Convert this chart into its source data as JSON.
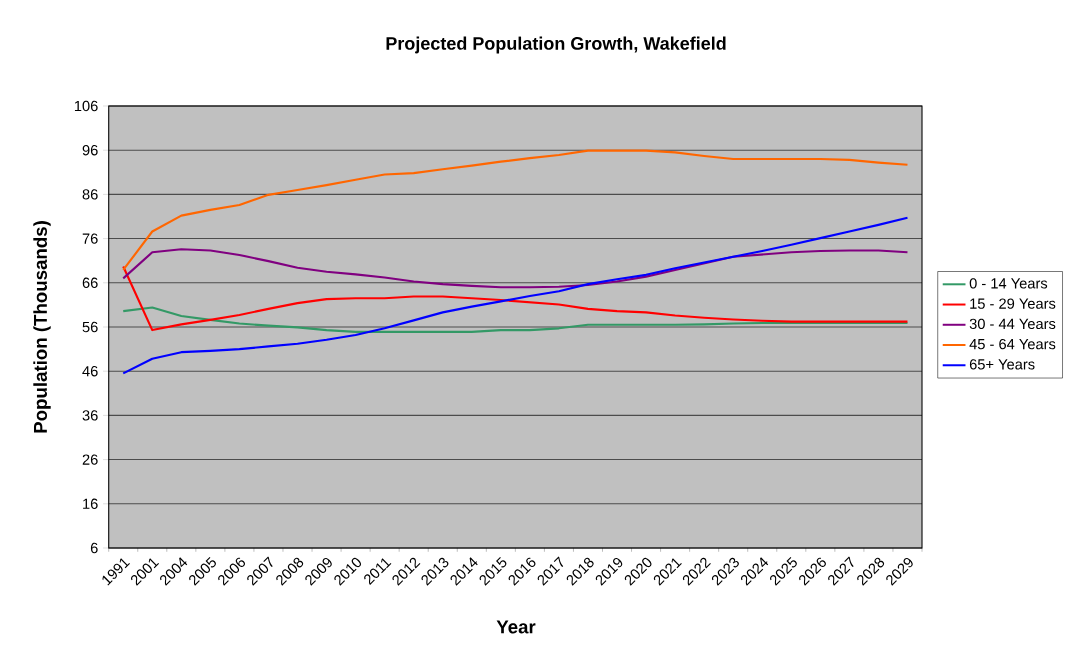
{
  "chart_data": {
    "type": "line",
    "title": "Projected Population Growth, Wakefield",
    "xlabel": "Year",
    "ylabel": "Population (Thousands)",
    "categories": [
      "1991",
      "2001",
      "2004",
      "2005",
      "2006",
      "2007",
      "2008",
      "2009",
      "2010",
      "2011",
      "2012",
      "2013",
      "2014",
      "2015",
      "2016",
      "2017",
      "2018",
      "2019",
      "2020",
      "2021",
      "2022",
      "2023",
      "2024",
      "2025",
      "2026",
      "2027",
      "2028",
      "2029"
    ],
    "series": [
      {
        "name": "0 - 14 Years",
        "color": "#339966",
        "values": [
          59.6,
          60.4,
          58.5,
          57.6,
          56.8,
          56.3,
          55.9,
          55.3,
          54.9,
          54.9,
          54.9,
          54.9,
          54.9,
          55.3,
          55.3,
          55.7,
          56.5,
          56.5,
          56.5,
          56.5,
          56.6,
          56.8,
          56.9,
          56.9,
          56.9,
          56.9,
          56.9,
          56.9
        ]
      },
      {
        "name": "15 - 29 Years",
        "color": "#ff0000",
        "values": [
          69.7,
          55.3,
          56.6,
          57.6,
          58.7,
          60.1,
          61.4,
          62.3,
          62.5,
          62.5,
          62.9,
          62.9,
          62.5,
          62.1,
          61.6,
          61.1,
          60.1,
          59.6,
          59.3,
          58.6,
          58.1,
          57.7,
          57.4,
          57.2,
          57.2,
          57.2,
          57.2,
          57.2
        ]
      },
      {
        "name": "30 - 44 Years",
        "color": "#800080",
        "values": [
          67.0,
          72.9,
          73.6,
          73.3,
          72.3,
          70.9,
          69.4,
          68.5,
          67.9,
          67.2,
          66.3,
          65.7,
          65.3,
          65.0,
          65.0,
          65.1,
          65.5,
          66.3,
          67.4,
          68.9,
          70.4,
          71.9,
          72.4,
          72.9,
          73.2,
          73.3,
          73.3,
          72.9
        ]
      },
      {
        "name": "45 - 64 Years",
        "color": "#ff6600",
        "values": [
          68.9,
          77.6,
          81.2,
          82.5,
          83.6,
          85.9,
          87.0,
          88.1,
          89.3,
          90.5,
          90.8,
          91.7,
          92.5,
          93.4,
          94.2,
          94.9,
          95.9,
          95.9,
          95.9,
          95.5,
          94.7,
          94.0,
          94.0,
          94.0,
          94.0,
          93.8,
          93.2,
          92.7
        ]
      },
      {
        "name": "65+ Years",
        "color": "#0000ff",
        "values": [
          45.5,
          48.8,
          50.3,
          50.6,
          51.0,
          51.6,
          52.2,
          53.1,
          54.2,
          55.7,
          57.5,
          59.3,
          60.6,
          61.8,
          63.0,
          64.1,
          65.7,
          66.8,
          67.8,
          69.3,
          70.6,
          71.9,
          73.2,
          74.6,
          76.1,
          77.6,
          79.1,
          80.7
        ]
      }
    ],
    "ylim": [
      6,
      106
    ],
    "yticks": [
      6,
      16,
      26,
      36,
      46,
      56,
      66,
      76,
      86,
      96,
      106
    ],
    "grid": "y",
    "legend": "right",
    "marker": "none",
    "line_style": "solid"
  }
}
